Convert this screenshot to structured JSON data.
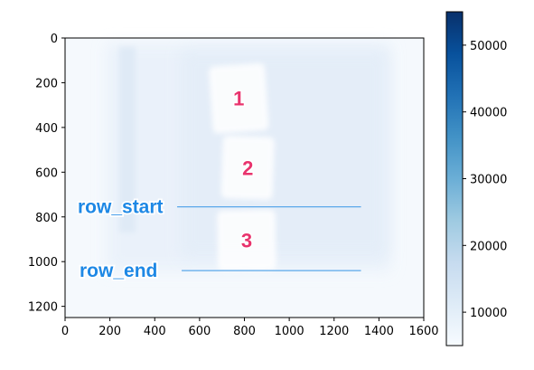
{
  "chart_data": {
    "type": "heatmap",
    "title": "",
    "xlabel": "",
    "ylabel": "",
    "xlim": [
      0,
      1600
    ],
    "ylim": [
      1250,
      0
    ],
    "x_ticks": [
      "0",
      "200",
      "400",
      "600",
      "800",
      "1000",
      "1200",
      "1400",
      "1600"
    ],
    "y_ticks": [
      "0",
      "200",
      "400",
      "600",
      "800",
      "1000",
      "1200"
    ],
    "colormap": "Blues",
    "colorbar": {
      "range": [
        5000,
        55000
      ],
      "ticks": [
        "10000",
        "20000",
        "30000",
        "40000",
        "50000"
      ]
    },
    "regions": [
      {
        "label": "1",
        "x_range": [
          650,
          900
        ],
        "y_range": [
          120,
          420
        ]
      },
      {
        "label": "2",
        "x_range": [
          700,
          930
        ],
        "y_range": [
          440,
          720
        ]
      },
      {
        "label": "3",
        "x_range": [
          680,
          940
        ],
        "y_range": [
          770,
          1040
        ]
      }
    ],
    "annotations": [
      {
        "text": "row_start",
        "row": 755,
        "x_range": [
          500,
          1320
        ],
        "color": "#1e88e5"
      },
      {
        "text": "row_end",
        "row": 1040,
        "x_range": [
          520,
          1320
        ],
        "color": "#1e88e5"
      }
    ],
    "label_color": "#e8336d"
  }
}
